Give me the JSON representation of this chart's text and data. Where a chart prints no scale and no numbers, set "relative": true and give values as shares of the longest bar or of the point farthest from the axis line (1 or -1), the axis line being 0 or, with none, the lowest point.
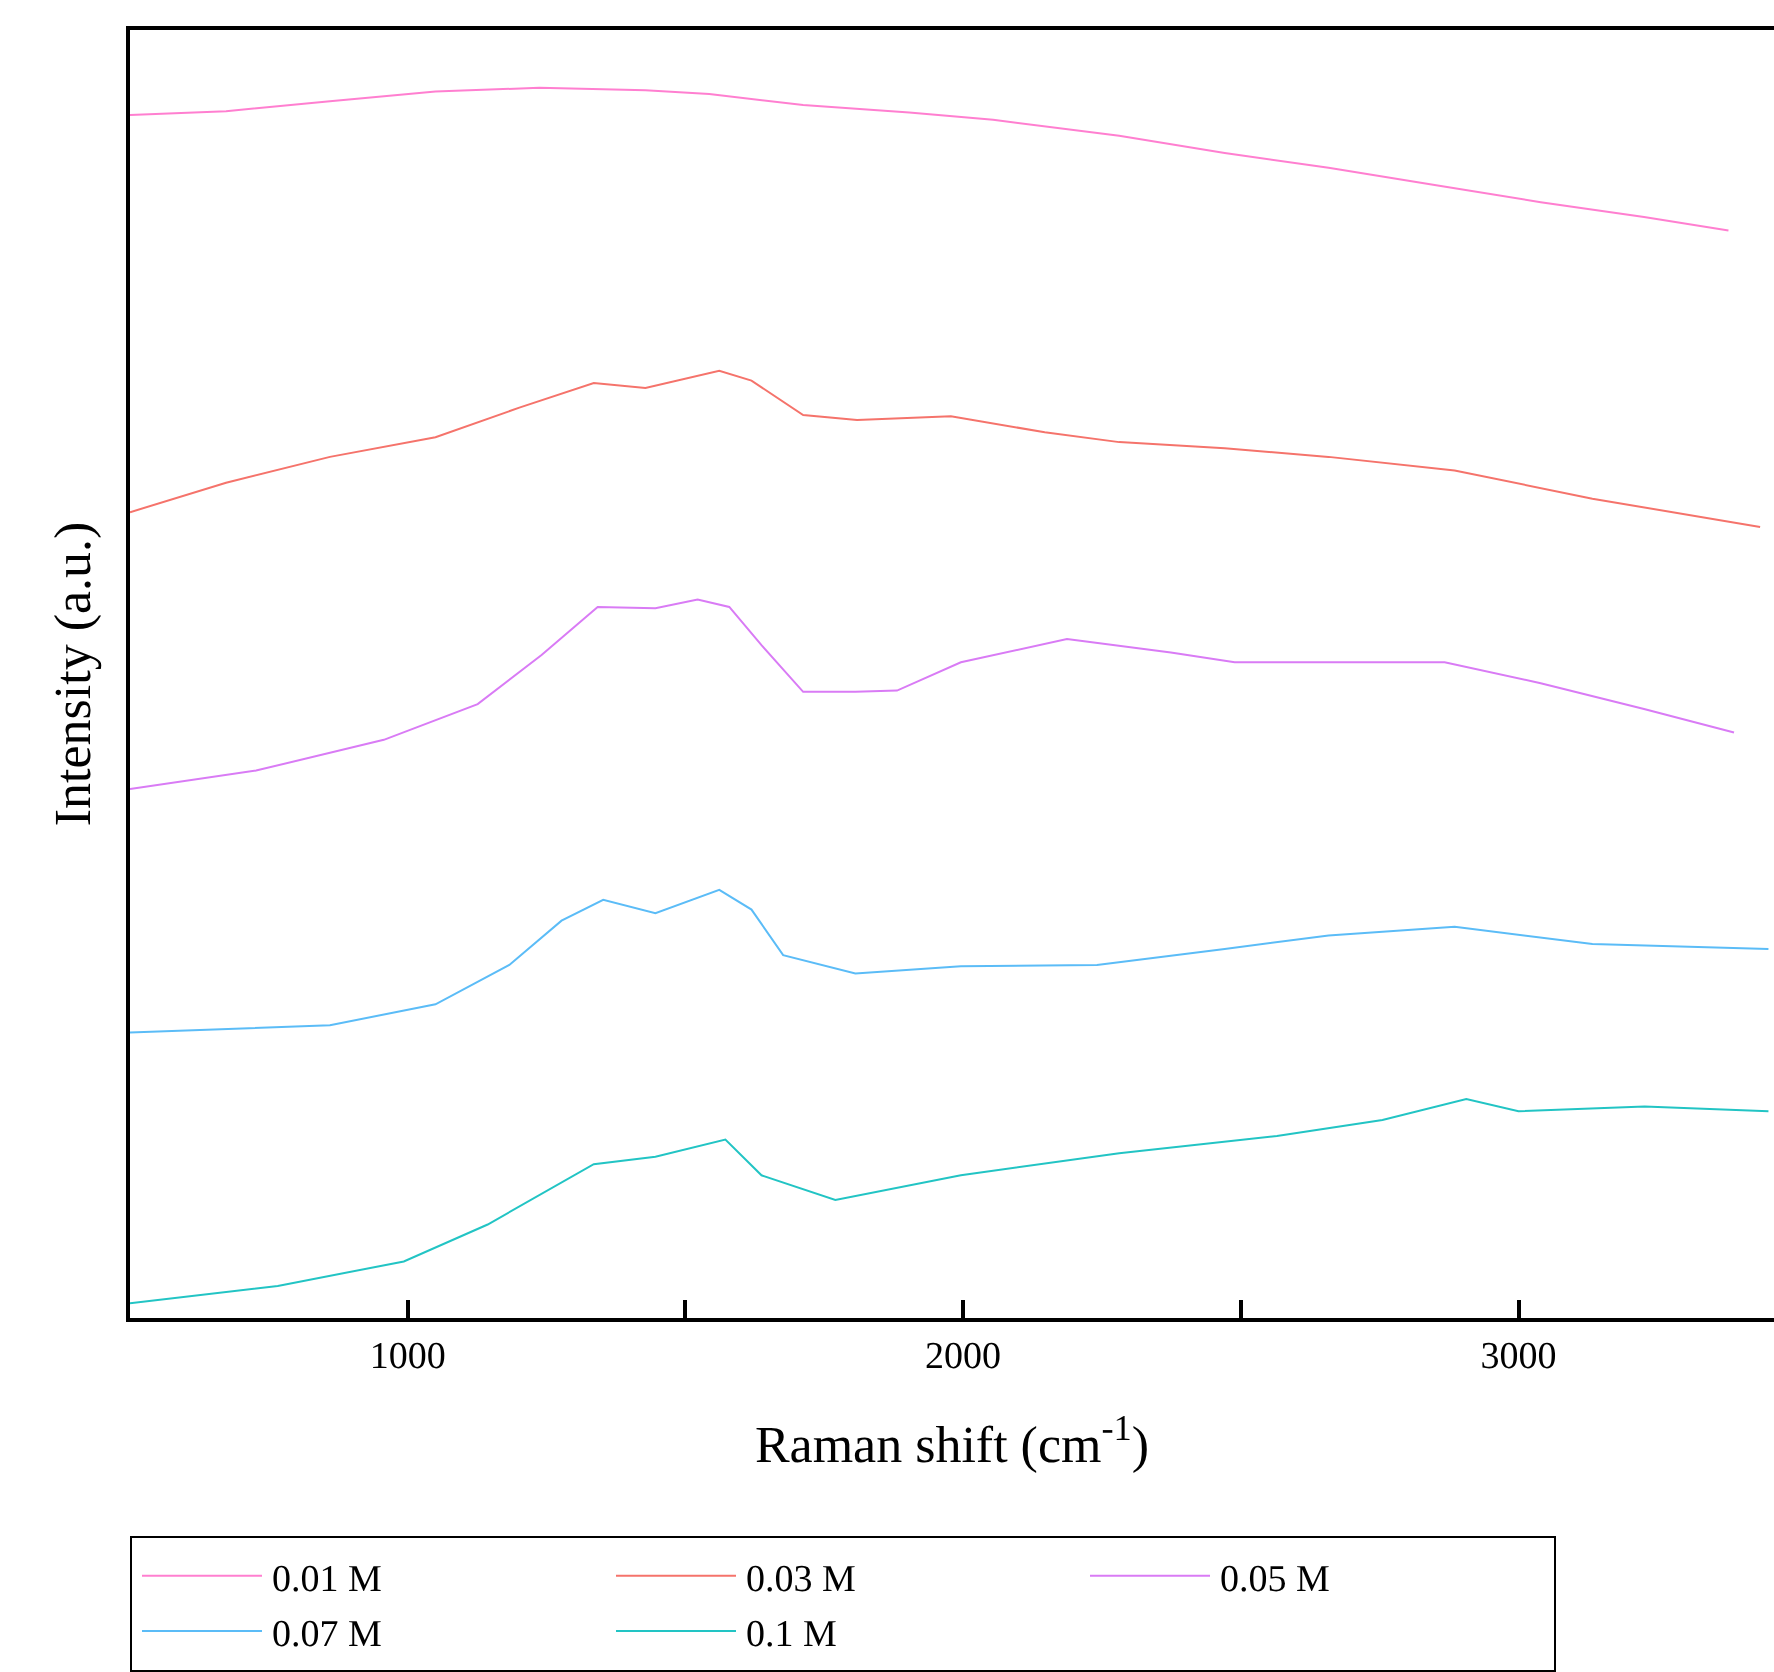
{
  "chart_data": {
    "type": "line",
    "relative": true,
    "xlabel": "Raman shift (cm$^{-1}$)",
    "ylabel": "Intensity (a.u.)",
    "xlim": [
      500,
      3460
    ],
    "xticks": [
      1000,
      {
        "value": 1500,
        "label": null
      },
      2000,
      {
        "value": 2500,
        "label": null
      },
      3000
    ],
    "grid": false,
    "legend": "bottom",
    "marker": "none",
    "line_style": "solid",
    "series": [
      {
        "name": "0.01 M",
        "color": "#ff7fd0",
        "x": [
          500,
          673,
          860,
          1050,
          1237,
          1428,
          1543,
          1712,
          1903,
          2054,
          2281,
          2471,
          2658,
          2849,
          3040,
          3226,
          3378
        ],
        "values": [
          0.978,
          0.981,
          0.989,
          0.997,
          1.0,
          0.998,
          0.995,
          0.986,
          0.98,
          0.974,
          0.961,
          0.947,
          0.935,
          0.921,
          0.907,
          0.895,
          0.884
        ]
      },
      {
        "name": "0.03 M",
        "color": "#f5736b",
        "x": [
          500,
          673,
          860,
          1050,
          1201,
          1335,
          1428,
          1561,
          1619,
          1712,
          1809,
          1978,
          2147,
          2281,
          2471,
          2658,
          2885,
          3133,
          3435
        ],
        "values": [
          0.655,
          0.679,
          0.7,
          0.716,
          0.74,
          0.76,
          0.756,
          0.77,
          0.762,
          0.734,
          0.73,
          0.733,
          0.72,
          0.712,
          0.707,
          0.7,
          0.689,
          0.666,
          0.643
        ]
      },
      {
        "name": "0.05 M",
        "color": "#d97bf5",
        "x": [
          500,
          727,
          957,
          1126,
          1241,
          1342,
          1446,
          1522,
          1579,
          1637,
          1712,
          1806,
          1881,
          1996,
          2187,
          2374,
          2489,
          2658,
          2867,
          3040,
          3226,
          3388
        ],
        "values": [
          0.43,
          0.445,
          0.47,
          0.499,
          0.539,
          0.578,
          0.577,
          0.584,
          0.578,
          0.547,
          0.509,
          0.509,
          0.51,
          0.533,
          0.552,
          0.541,
          0.533,
          0.533,
          0.533,
          0.516,
          0.495,
          0.476
        ]
      },
      {
        "name": "0.07 M",
        "color": "#5bbcf7",
        "x": [
          500,
          860,
          1050,
          1183,
          1277,
          1352,
          1446,
          1561,
          1619,
          1676,
          1806,
          1996,
          2241,
          2471,
          2658,
          2885,
          3133,
          3450
        ],
        "values": [
          0.232,
          0.238,
          0.255,
          0.287,
          0.323,
          0.34,
          0.329,
          0.348,
          0.332,
          0.295,
          0.28,
          0.286,
          0.287,
          0.3,
          0.311,
          0.318,
          0.304,
          0.3
        ]
      },
      {
        "name": "0.1 M",
        "color": "#22c4c4",
        "x": [
          500,
          766,
          993,
          1144,
          1335,
          1446,
          1572,
          1637,
          1770,
          1996,
          2281,
          2565,
          2755,
          2906,
          3000,
          3227,
          3450
        ],
        "values": [
          0.012,
          0.026,
          0.046,
          0.076,
          0.125,
          0.131,
          0.145,
          0.116,
          0.096,
          0.116,
          0.134,
          0.148,
          0.161,
          0.178,
          0.168,
          0.172,
          0.168
        ]
      }
    ]
  }
}
